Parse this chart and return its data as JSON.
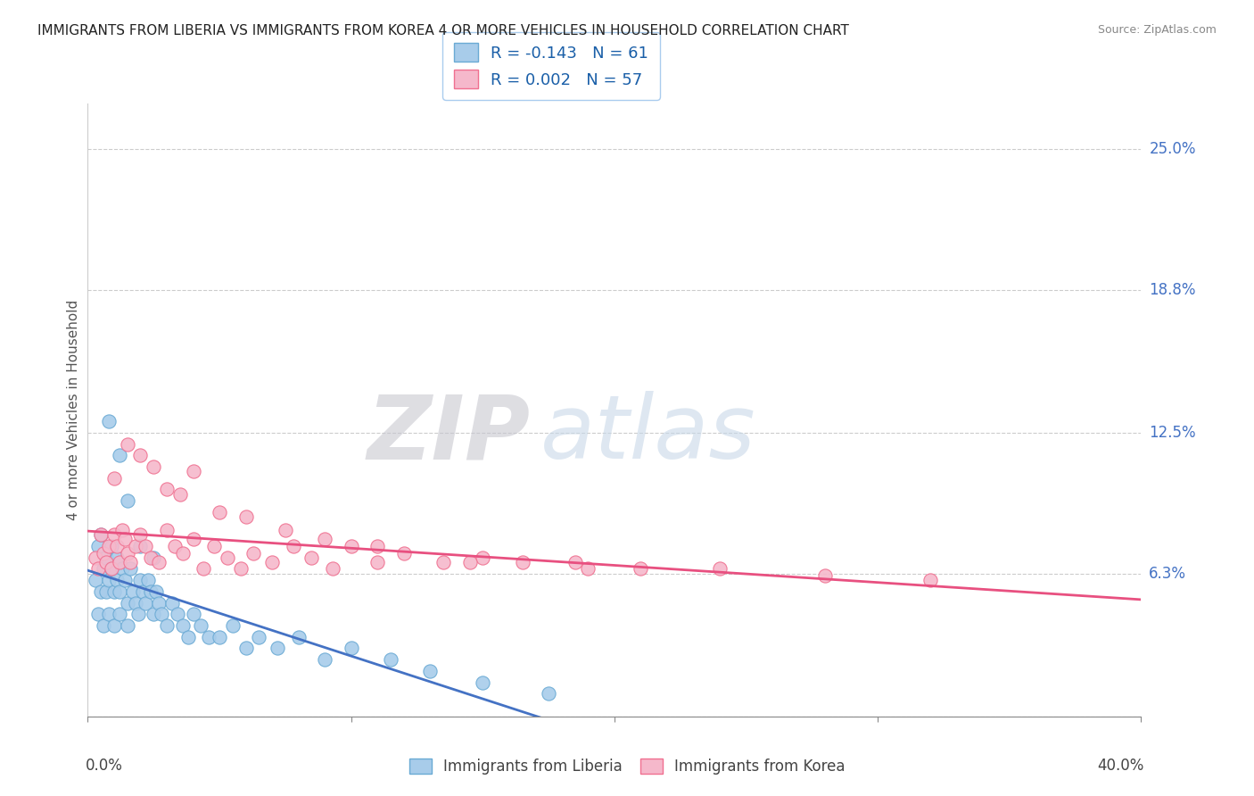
{
  "title": "IMMIGRANTS FROM LIBERIA VS IMMIGRANTS FROM KOREA 4 OR MORE VEHICLES IN HOUSEHOLD CORRELATION CHART",
  "source": "Source: ZipAtlas.com",
  "ylabel": "4 or more Vehicles in Household",
  "right_yticks": [
    "25.0%",
    "18.8%",
    "12.5%",
    "6.3%"
  ],
  "right_ytick_values": [
    0.25,
    0.188,
    0.125,
    0.063
  ],
  "xlim": [
    0.0,
    0.4
  ],
  "ylim": [
    0.0,
    0.27
  ],
  "liberia_R": -0.143,
  "liberia_N": 61,
  "korea_R": 0.002,
  "korea_N": 57,
  "liberia_color": "#a8ccea",
  "korea_color": "#f5b8cb",
  "liberia_edge_color": "#6aaad4",
  "korea_edge_color": "#f07090",
  "liberia_trend_color": "#4472C4",
  "korea_trend_color": "#E85080",
  "watermark_zip_color": "#c8ddf0",
  "watermark_atlas_color": "#c8d8e8",
  "background_color": "#ffffff",
  "grid_color": "#cccccc",
  "right_label_color": "#4472C4",
  "liberia_points_x": [
    0.003,
    0.004,
    0.004,
    0.005,
    0.005,
    0.006,
    0.006,
    0.007,
    0.007,
    0.008,
    0.008,
    0.009,
    0.009,
    0.01,
    0.01,
    0.011,
    0.011,
    0.012,
    0.012,
    0.013,
    0.014,
    0.015,
    0.015,
    0.016,
    0.017,
    0.018,
    0.019,
    0.02,
    0.021,
    0.022,
    0.023,
    0.024,
    0.025,
    0.026,
    0.027,
    0.028,
    0.03,
    0.032,
    0.034,
    0.036,
    0.038,
    0.04,
    0.043,
    0.046,
    0.05,
    0.055,
    0.06,
    0.065,
    0.072,
    0.08,
    0.09,
    0.1,
    0.115,
    0.13,
    0.15,
    0.175,
    0.008,
    0.012,
    0.015,
    0.02,
    0.025
  ],
  "liberia_points_y": [
    0.06,
    0.045,
    0.075,
    0.055,
    0.08,
    0.065,
    0.04,
    0.07,
    0.055,
    0.06,
    0.045,
    0.075,
    0.065,
    0.055,
    0.04,
    0.07,
    0.06,
    0.055,
    0.045,
    0.065,
    0.06,
    0.05,
    0.04,
    0.065,
    0.055,
    0.05,
    0.045,
    0.06,
    0.055,
    0.05,
    0.06,
    0.055,
    0.045,
    0.055,
    0.05,
    0.045,
    0.04,
    0.05,
    0.045,
    0.04,
    0.035,
    0.045,
    0.04,
    0.035,
    0.035,
    0.04,
    0.03,
    0.035,
    0.03,
    0.035,
    0.025,
    0.03,
    0.025,
    0.02,
    0.015,
    0.01,
    0.13,
    0.115,
    0.095,
    0.075,
    0.07
  ],
  "korea_points_x": [
    0.003,
    0.004,
    0.005,
    0.006,
    0.007,
    0.008,
    0.009,
    0.01,
    0.011,
    0.012,
    0.013,
    0.014,
    0.015,
    0.016,
    0.018,
    0.02,
    0.022,
    0.024,
    0.027,
    0.03,
    0.033,
    0.036,
    0.04,
    0.044,
    0.048,
    0.053,
    0.058,
    0.063,
    0.07,
    0.078,
    0.085,
    0.093,
    0.1,
    0.11,
    0.12,
    0.135,
    0.15,
    0.165,
    0.185,
    0.21,
    0.24,
    0.28,
    0.32,
    0.01,
    0.015,
    0.02,
    0.025,
    0.03,
    0.035,
    0.04,
    0.05,
    0.06,
    0.075,
    0.09,
    0.11,
    0.145,
    0.19
  ],
  "korea_points_y": [
    0.07,
    0.065,
    0.08,
    0.072,
    0.068,
    0.075,
    0.065,
    0.08,
    0.075,
    0.068,
    0.082,
    0.078,
    0.072,
    0.068,
    0.075,
    0.08,
    0.075,
    0.07,
    0.068,
    0.082,
    0.075,
    0.072,
    0.078,
    0.065,
    0.075,
    0.07,
    0.065,
    0.072,
    0.068,
    0.075,
    0.07,
    0.065,
    0.075,
    0.068,
    0.072,
    0.068,
    0.07,
    0.068,
    0.068,
    0.065,
    0.065,
    0.062,
    0.06,
    0.105,
    0.12,
    0.115,
    0.11,
    0.1,
    0.098,
    0.108,
    0.09,
    0.088,
    0.082,
    0.078,
    0.075,
    0.068,
    0.065
  ]
}
